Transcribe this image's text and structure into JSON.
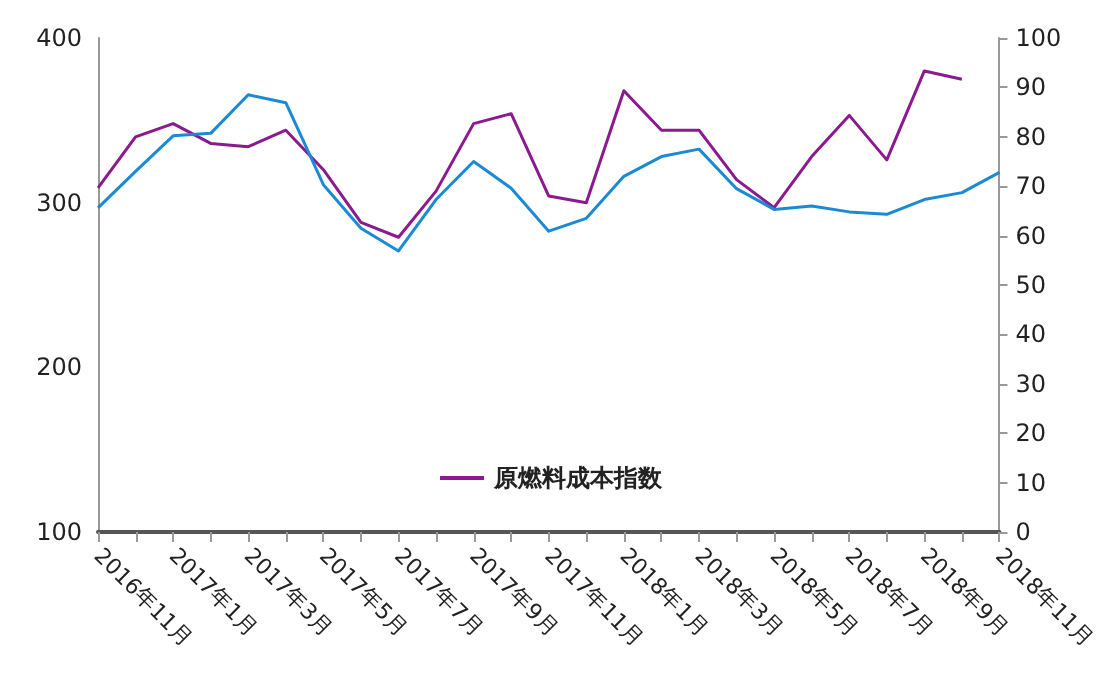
{
  "chart_data": {
    "type": "line",
    "categories": [
      "2016年11月",
      null,
      "2017年1月",
      null,
      "2017年3月",
      null,
      "2017年5月",
      null,
      "2017年7月",
      null,
      "2017年9月",
      null,
      "2017年11月",
      null,
      "2018年1月",
      null,
      "2018年3月",
      null,
      "2018年5月",
      null,
      "2018年7月",
      null,
      "2018年9月",
      null,
      "2018年11月"
    ],
    "series": [
      {
        "name": "原燃料成本指数",
        "color": "#8b1a8f",
        "values": [
          309,
          340,
          348,
          336,
          334,
          344,
          320,
          288,
          279,
          307,
          348,
          354,
          304,
          300,
          368,
          344,
          344,
          314,
          297,
          328,
          353,
          326,
          380,
          375,
          null
        ]
      },
      {
        "color": "#1a8ad4",
        "axis": "y2",
        "values": [
          65.6,
          73,
          80.2,
          80.7,
          88.5,
          86.9,
          70.3,
          61.5,
          56.9,
          67.3,
          75,
          69.6,
          60.9,
          63.5,
          72,
          76,
          77.5,
          69.5,
          65.3,
          66,
          64.8,
          64.3,
          67.3,
          68.7,
          72.8
        ]
      }
    ],
    "ylim": [
      100,
      400
    ],
    "yticks": [
      100,
      200,
      300,
      400
    ],
    "y2lim": [
      0,
      100
    ],
    "y2ticks": [
      0,
      10,
      20,
      30,
      40,
      50,
      60,
      70,
      80,
      90,
      100
    ],
    "grid": false,
    "legend": "bottom",
    "marker": "none",
    "line_style": "solid"
  }
}
